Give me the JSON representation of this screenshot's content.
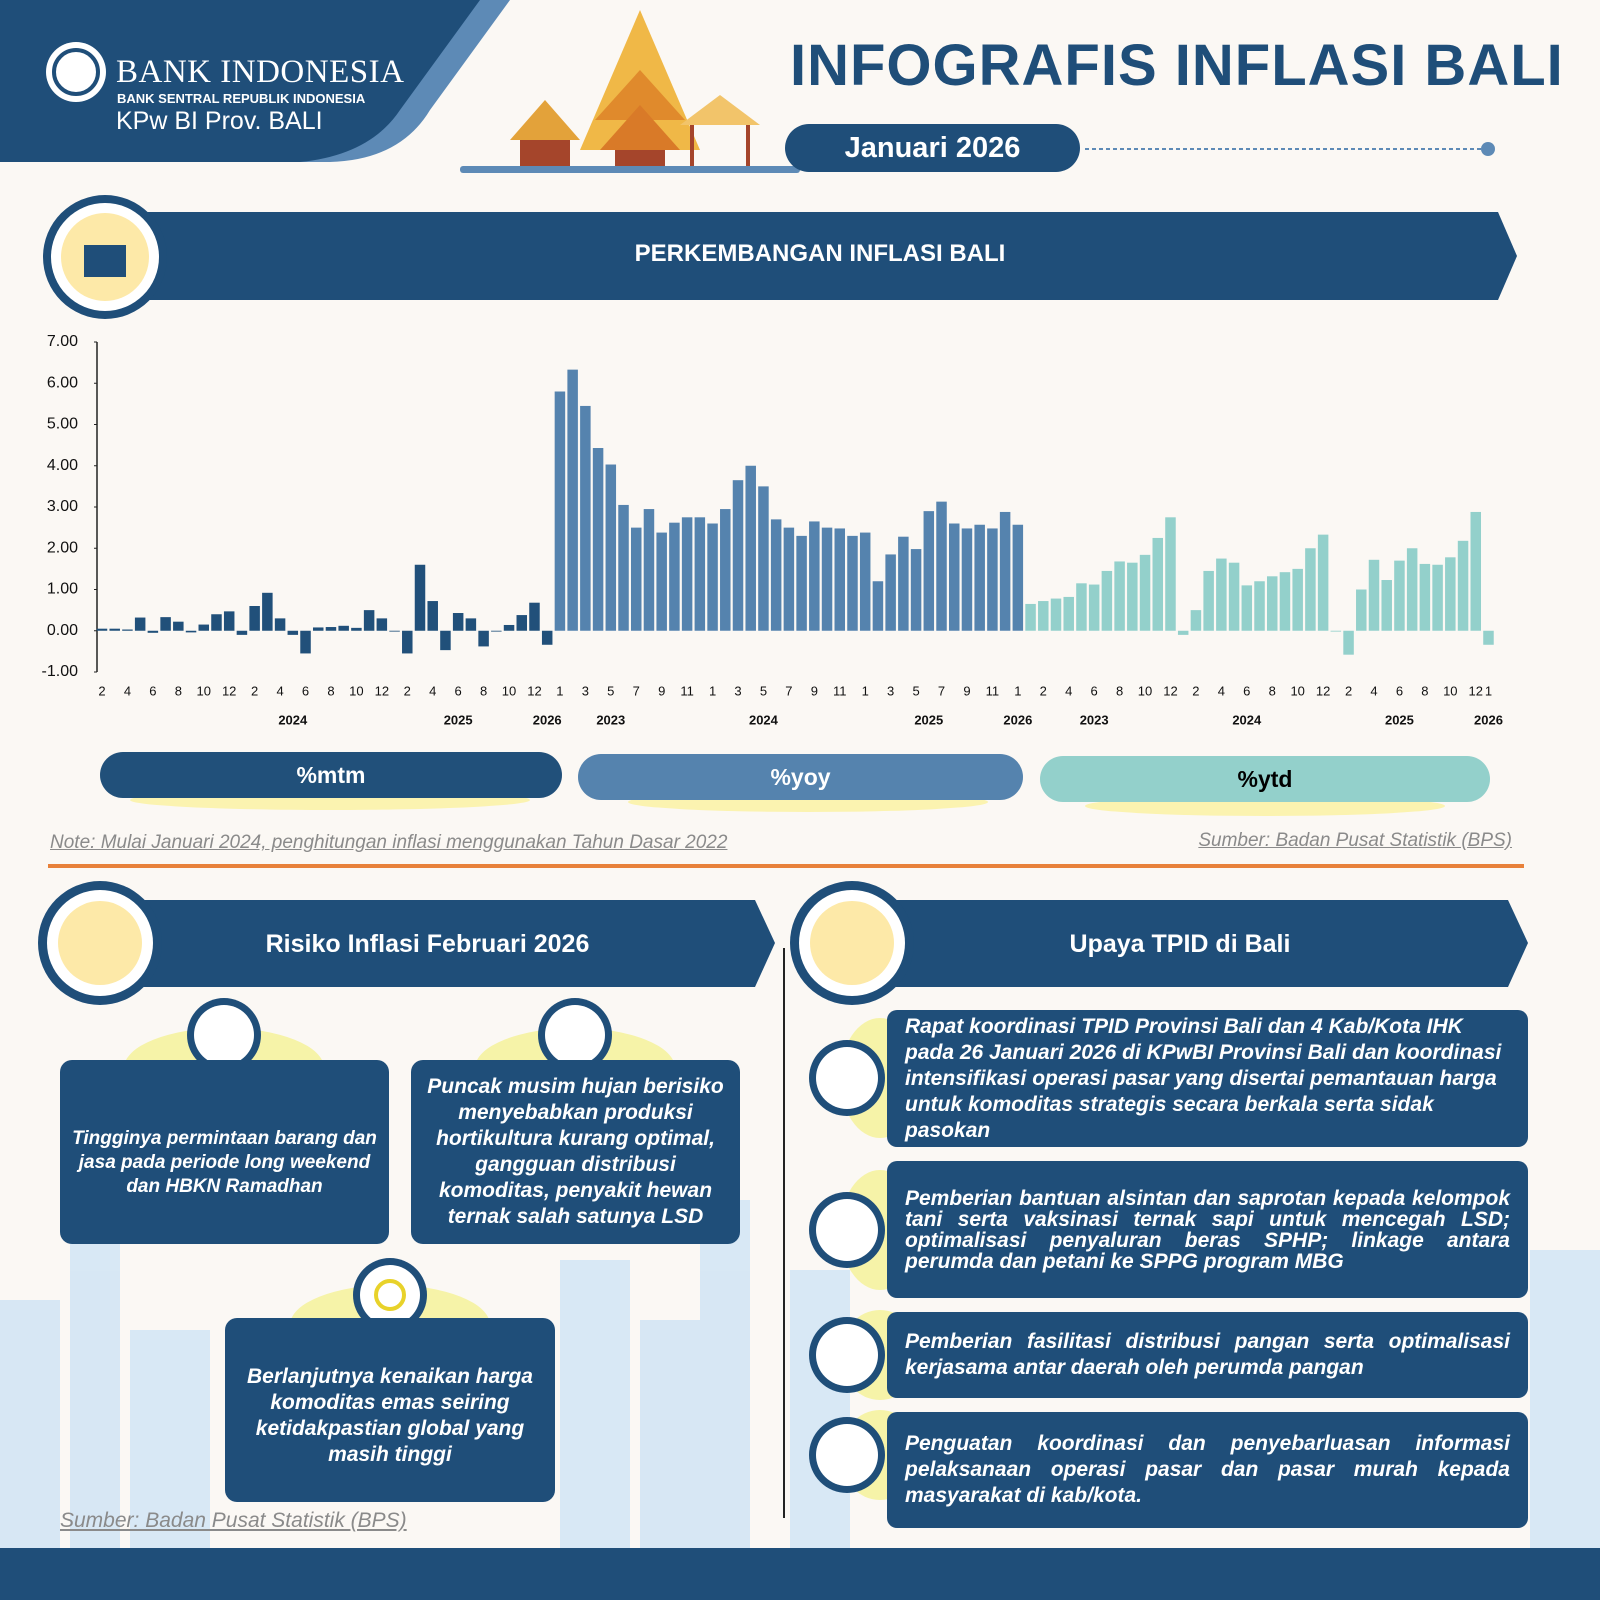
{
  "header": {
    "org": "BANK INDONESIA",
    "org_sub": "BANK SENTRAL REPUBLIK INDONESIA",
    "office": "KPw BI Prov. BALI",
    "title": "INFOGRAFIS INFLASI BALI",
    "period": "Januari 2026"
  },
  "chart_data": {
    "type": "bar",
    "title": "PERKEMBANGAN INFLASI BALI",
    "ylim": [
      -1,
      7
    ],
    "yticks": [
      {
        "value": 7,
        "label": "7.00"
      },
      {
        "value": 6,
        "label": "6.00"
      },
      {
        "value": 5,
        "label": "5.00"
      },
      {
        "value": 4,
        "label": "4.00"
      },
      {
        "value": 3,
        "label": "3.00"
      },
      {
        "value": 2,
        "label": "2.00"
      },
      {
        "value": 1,
        "label": "1.00"
      },
      {
        "value": 0,
        "label": "0.00"
      },
      {
        "value": -1,
        "label": "-1.00"
      }
    ],
    "groups": [
      {
        "name": "%mtm",
        "color": "#21507a",
        "categories": [
          2,
          null,
          4,
          null,
          6,
          null,
          8,
          null,
          10,
          null,
          12,
          null,
          2,
          null,
          4,
          null,
          6,
          null,
          8,
          null,
          10,
          null,
          12,
          null,
          2,
          null,
          4,
          null,
          6,
          null,
          8,
          null,
          10,
          null,
          12,
          null
        ],
        "years": [
          null,
          null,
          null,
          null,
          null,
          null,
          null,
          null,
          null,
          null,
          null,
          null,
          null,
          null,
          null,
          2024,
          null,
          null,
          null,
          null,
          null,
          null,
          null,
          null,
          null,
          null,
          null,
          null,
          2025,
          null,
          null,
          null,
          null,
          null,
          null,
          2026
        ],
        "values": [
          0.05,
          0.05,
          0.03,
          0.32,
          -0.05,
          0.33,
          0.22,
          -0.04,
          0.15,
          0.4,
          0.47,
          -0.1,
          0.6,
          0.92,
          0.3,
          -0.1,
          -0.55,
          0.08,
          0.09,
          0.12,
          0.07,
          0.5,
          0.3,
          -0.02,
          -0.55,
          1.6,
          0.72,
          -0.47,
          0.43,
          0.3,
          -0.38,
          -0.02,
          0.14,
          0.38,
          0.68,
          -0.34
        ]
      },
      {
        "name": "%yoy",
        "color": "#5583ae",
        "categories": [
          1,
          null,
          3,
          null,
          5,
          null,
          7,
          null,
          9,
          null,
          11,
          null,
          1,
          null,
          3,
          null,
          5,
          null,
          7,
          null,
          9,
          null,
          11,
          null,
          1,
          null,
          3,
          null,
          5,
          null,
          7,
          null,
          9,
          null,
          11,
          null,
          1
        ],
        "years": [
          null,
          null,
          null,
          null,
          2023,
          null,
          null,
          null,
          null,
          null,
          null,
          null,
          null,
          null,
          null,
          null,
          2024,
          null,
          null,
          null,
          null,
          null,
          null,
          null,
          null,
          null,
          null,
          null,
          null,
          2025,
          null,
          null,
          null,
          null,
          null,
          null,
          2026
        ],
        "values": [
          5.8,
          6.33,
          5.45,
          4.43,
          4.03,
          3.05,
          2.5,
          2.95,
          2.38,
          2.62,
          2.75,
          2.75,
          2.6,
          2.95,
          3.65,
          4.0,
          3.5,
          2.7,
          2.5,
          2.3,
          2.65,
          2.5,
          2.48,
          2.3,
          2.38,
          1.2,
          1.85,
          2.28,
          1.98,
          2.9,
          3.13,
          2.6,
          2.48,
          2.57,
          2.48,
          2.88,
          2.57
        ]
      },
      {
        "name": "%ytd",
        "color": "#93d0cb",
        "categories": [
          null,
          2,
          null,
          4,
          null,
          6,
          null,
          8,
          null,
          10,
          null,
          12,
          null,
          2,
          null,
          4,
          null,
          6,
          null,
          8,
          null,
          10,
          null,
          12,
          null,
          2,
          null,
          4,
          null,
          6,
          null,
          8,
          null,
          10,
          null,
          12,
          1
        ],
        "years": [
          null,
          null,
          null,
          null,
          null,
          2023,
          null,
          null,
          null,
          null,
          null,
          null,
          null,
          null,
          null,
          null,
          null,
          2024,
          null,
          null,
          null,
          null,
          null,
          null,
          null,
          null,
          null,
          null,
          null,
          2025,
          null,
          null,
          null,
          null,
          null,
          null,
          2026
        ],
        "values": [
          0.65,
          0.72,
          0.78,
          0.82,
          1.15,
          1.12,
          1.45,
          1.68,
          1.65,
          1.84,
          2.25,
          2.75,
          -0.1,
          0.5,
          1.45,
          1.75,
          1.65,
          1.1,
          1.2,
          1.32,
          1.42,
          1.5,
          2.0,
          2.33,
          -0.02,
          -0.58,
          1.0,
          1.72,
          1.23,
          1.7,
          2.0,
          1.62,
          1.6,
          1.78,
          2.18,
          2.88,
          -0.34
        ]
      }
    ],
    "note": "Note: Mulai Januari 2024, penghitungan inflasi menggunakan Tahun Dasar 2022",
    "source": "Sumber: Badan Pusat Statistik (BPS)"
  },
  "risks": {
    "title": "Risiko Inflasi Februari 2026",
    "items": [
      "Tingginya permintaan barang dan jasa pada periode long weekend dan HBKN Ramadhan",
      "Puncak musim hujan berisiko menyebabkan produksi hortikultura kurang optimal, gangguan distribusi komoditas, penyakit hewan ternak salah satunya LSD",
      "Berlanjutnya kenaikan harga komoditas emas seiring ketidakpastian global yang masih tinggi"
    ],
    "source": "Sumber: Badan Pusat Statistik (BPS)"
  },
  "efforts": {
    "title": "Upaya TPID di Bali",
    "items": [
      "Rapat koordinasi TPID Provinsi Bali dan 4 Kab/Kota IHK pada 26 Januari 2026 di KPwBI Provinsi Bali dan koordinasi intensifikasi operasi pasar yang disertai pemantauan harga untuk komoditas strategis secara berkala serta sidak pasokan",
      "Pemberian bantuan alsintan dan saprotan kepada kelompok tani serta vaksinasi ternak sapi untuk mencegah LSD; optimalisasi penyaluran beras SPHP; linkage antara perumda dan petani ke SPPG program MBG",
      "Pemberian fasilitasi distribusi pangan serta optimalisasi kerjasama antar daerah oleh perumda pangan",
      "Penguatan koordinasi dan penyebarluasan informasi pelaksanaan operasi pasar dan pasar murah kepada masyarakat di kab/kota."
    ]
  }
}
